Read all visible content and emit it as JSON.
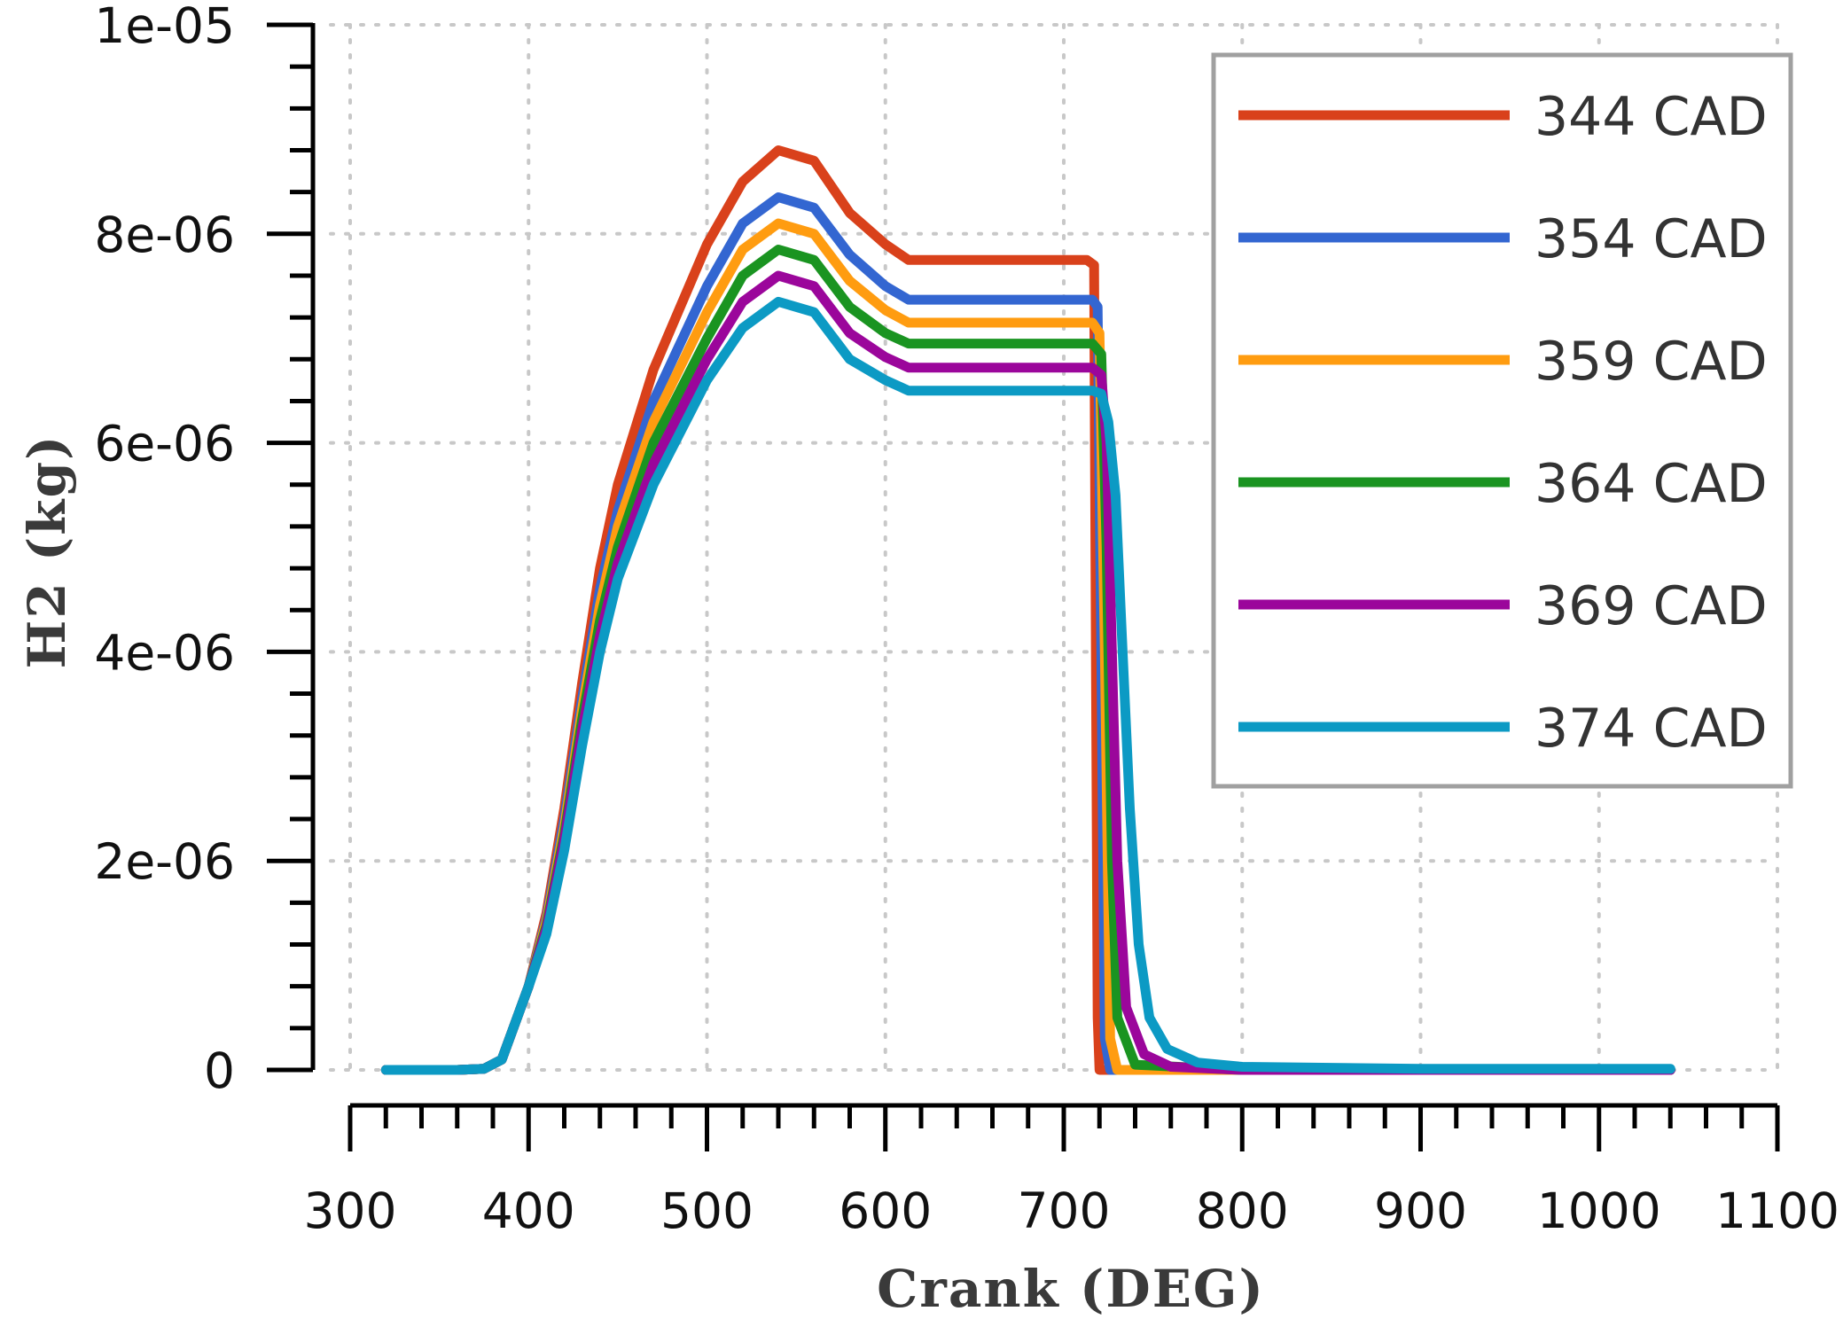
{
  "chart_data": {
    "type": "line",
    "title": "",
    "xlabel": "Crank (DEG)",
    "ylabel": "H2 (kg)",
    "xlim": [
      300,
      1100
    ],
    "ylim": [
      0,
      1e-05
    ],
    "x_ticks": [
      "300",
      "400",
      "500",
      "600",
      "700",
      "800",
      "900",
      "1000",
      "1100"
    ],
    "y_ticks": [
      "0",
      "2e-06",
      "4e-06",
      "6e-06",
      "8e-06",
      "1e-05"
    ],
    "grid": true,
    "legend_position": "top-right",
    "series": [
      {
        "name": "344 CAD",
        "color": "#d9411b",
        "points": [
          [
            320,
            0
          ],
          [
            360,
            0
          ],
          [
            375,
            1e-08
          ],
          [
            385,
            1e-07
          ],
          [
            400,
            8e-07
          ],
          [
            410,
            1.5e-06
          ],
          [
            420,
            2.5e-06
          ],
          [
            430,
            3.7e-06
          ],
          [
            440,
            4.8e-06
          ],
          [
            450,
            5.6e-06
          ],
          [
            470,
            6.7e-06
          ],
          [
            500,
            7.9e-06
          ],
          [
            520,
            8.5e-06
          ],
          [
            540,
            8.8e-06
          ],
          [
            560,
            8.7e-06
          ],
          [
            580,
            8.2e-06
          ],
          [
            600,
            7.9e-06
          ],
          [
            613,
            7.75e-06
          ],
          [
            713,
            7.75e-06
          ],
          [
            717,
            7.7e-06
          ],
          [
            718,
            4e-06
          ],
          [
            719,
            5e-07
          ],
          [
            720,
            0
          ],
          [
            1040,
            0
          ]
        ]
      },
      {
        "name": "354 CAD",
        "color": "#3366d1",
        "points": [
          [
            320,
            0
          ],
          [
            360,
            0
          ],
          [
            375,
            1e-08
          ],
          [
            385,
            1e-07
          ],
          [
            400,
            8e-07
          ],
          [
            410,
            1.45e-06
          ],
          [
            420,
            2.4e-06
          ],
          [
            430,
            3.55e-06
          ],
          [
            440,
            4.6e-06
          ],
          [
            450,
            5.35e-06
          ],
          [
            470,
            6.4e-06
          ],
          [
            500,
            7.5e-06
          ],
          [
            520,
            8.1e-06
          ],
          [
            540,
            8.35e-06
          ],
          [
            560,
            8.25e-06
          ],
          [
            580,
            7.8e-06
          ],
          [
            600,
            7.5e-06
          ],
          [
            613,
            7.37e-06
          ],
          [
            716,
            7.37e-06
          ],
          [
            719,
            7.3e-06
          ],
          [
            721,
            4e-06
          ],
          [
            723,
            3e-07
          ],
          [
            726,
            0
          ],
          [
            1040,
            0
          ]
        ]
      },
      {
        "name": "359 CAD",
        "color": "#ff9c10",
        "points": [
          [
            320,
            0
          ],
          [
            360,
            0
          ],
          [
            375,
            1e-08
          ],
          [
            385,
            1e-07
          ],
          [
            400,
            8e-07
          ],
          [
            410,
            1.42e-06
          ],
          [
            420,
            2.32e-06
          ],
          [
            430,
            3.45e-06
          ],
          [
            440,
            4.45e-06
          ],
          [
            450,
            5.2e-06
          ],
          [
            470,
            6.2e-06
          ],
          [
            500,
            7.25e-06
          ],
          [
            520,
            7.85e-06
          ],
          [
            540,
            8.1e-06
          ],
          [
            560,
            8e-06
          ],
          [
            580,
            7.55e-06
          ],
          [
            600,
            7.27e-06
          ],
          [
            613,
            7.15e-06
          ],
          [
            716,
            7.15e-06
          ],
          [
            720,
            7.05e-06
          ],
          [
            723,
            4e-06
          ],
          [
            726,
            3e-07
          ],
          [
            730,
            0
          ],
          [
            930,
            0
          ]
        ]
      },
      {
        "name": "364 CAD",
        "color": "#1a9421",
        "points": [
          [
            320,
            0
          ],
          [
            360,
            0
          ],
          [
            375,
            1e-08
          ],
          [
            385,
            1e-07
          ],
          [
            400,
            8e-07
          ],
          [
            410,
            1.38e-06
          ],
          [
            420,
            2.25e-06
          ],
          [
            430,
            3.35e-06
          ],
          [
            440,
            4.3e-06
          ],
          [
            450,
            5e-06
          ],
          [
            470,
            6e-06
          ],
          [
            500,
            7e-06
          ],
          [
            520,
            7.6e-06
          ],
          [
            540,
            7.85e-06
          ],
          [
            560,
            7.75e-06
          ],
          [
            580,
            7.3e-06
          ],
          [
            600,
            7.05e-06
          ],
          [
            613,
            6.95e-06
          ],
          [
            716,
            6.95e-06
          ],
          [
            721,
            6.85e-06
          ],
          [
            724,
            5e-06
          ],
          [
            727,
            2e-06
          ],
          [
            730,
            5e-07
          ],
          [
            740,
            5e-08
          ],
          [
            800,
            0
          ],
          [
            1040,
            0
          ]
        ]
      },
      {
        "name": "369 CAD",
        "color": "#9b069b",
        "points": [
          [
            320,
            0
          ],
          [
            360,
            0
          ],
          [
            375,
            1e-08
          ],
          [
            385,
            1e-07
          ],
          [
            400,
            8e-07
          ],
          [
            410,
            1.35e-06
          ],
          [
            420,
            2.2e-06
          ],
          [
            430,
            3.25e-06
          ],
          [
            440,
            4.15e-06
          ],
          [
            450,
            4.85e-06
          ],
          [
            470,
            5.8e-06
          ],
          [
            500,
            6.8e-06
          ],
          [
            520,
            7.35e-06
          ],
          [
            540,
            7.6e-06
          ],
          [
            560,
            7.5e-06
          ],
          [
            580,
            7.05e-06
          ],
          [
            600,
            6.82e-06
          ],
          [
            613,
            6.72e-06
          ],
          [
            716,
            6.72e-06
          ],
          [
            721,
            6.65e-06
          ],
          [
            724,
            6e-06
          ],
          [
            727,
            4e-06
          ],
          [
            730,
            2e-06
          ],
          [
            735,
            6e-07
          ],
          [
            745,
            1.5e-07
          ],
          [
            760,
            3e-08
          ],
          [
            800,
            0
          ],
          [
            1040,
            0
          ]
        ]
      },
      {
        "name": "374 CAD",
        "color": "#0c9ac4",
        "points": [
          [
            320,
            0
          ],
          [
            360,
            0
          ],
          [
            375,
            1e-08
          ],
          [
            385,
            1e-07
          ],
          [
            400,
            8e-07
          ],
          [
            410,
            1.3e-06
          ],
          [
            420,
            2.1e-06
          ],
          [
            430,
            3.1e-06
          ],
          [
            440,
            4e-06
          ],
          [
            450,
            4.7e-06
          ],
          [
            470,
            5.6e-06
          ],
          [
            500,
            6.6e-06
          ],
          [
            520,
            7.1e-06
          ],
          [
            540,
            7.35e-06
          ],
          [
            560,
            7.25e-06
          ],
          [
            580,
            6.8e-06
          ],
          [
            600,
            6.6e-06
          ],
          [
            613,
            6.5e-06
          ],
          [
            716,
            6.5e-06
          ],
          [
            721,
            6.47e-06
          ],
          [
            725,
            6.2e-06
          ],
          [
            729,
            5.5e-06
          ],
          [
            733,
            4e-06
          ],
          [
            737,
            2.5e-06
          ],
          [
            742,
            1.2e-06
          ],
          [
            748,
            5e-07
          ],
          [
            758,
            2e-07
          ],
          [
            775,
            7e-08
          ],
          [
            800,
            3e-08
          ],
          [
            900,
            1e-08
          ],
          [
            1040,
            1e-08
          ]
        ]
      }
    ]
  }
}
